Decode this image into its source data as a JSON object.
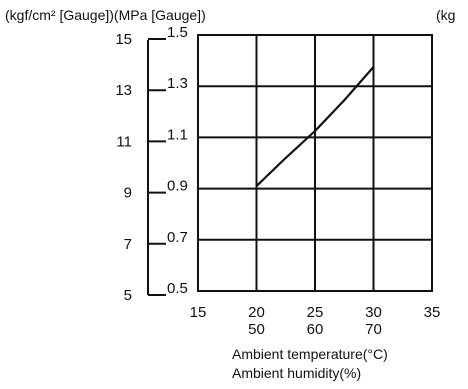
{
  "header": {
    "left_units": "(kgf/cm² [Gauge])(MPa [Gauge])",
    "right_units": "(kg"
  },
  "chart_data": {
    "type": "line",
    "x_axis": {
      "temperature_ticks": [
        "15",
        "20",
        "25",
        "30",
        "35"
      ],
      "humidity_ticks": [
        "50",
        "60",
        "70"
      ],
      "xlim": [
        15,
        35
      ]
    },
    "y_axis": {
      "mpa_ticks": [
        "0.5",
        "0.7",
        "0.9",
        "1.1",
        "1.3",
        "1.5"
      ],
      "kgf_ticks": [
        "5",
        "7",
        "9",
        "11",
        "13",
        "15"
      ],
      "ylim_mpa": [
        0.5,
        1.5
      ]
    },
    "xlabel": [
      "Ambient temperature(°C)",
      "Ambient humidity(%)"
    ],
    "series": [
      {
        "x": [
          20,
          22.5,
          25,
          27.5,
          30
        ],
        "y": [
          0.91,
          1.02,
          1.125,
          1.245,
          1.375
        ]
      }
    ],
    "grid": true,
    "colors": {
      "line": "#111111",
      "grid": "#111111",
      "background": "#ffffff"
    }
  }
}
